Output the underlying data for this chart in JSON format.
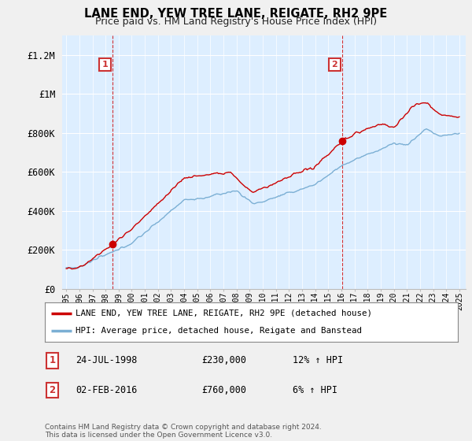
{
  "title": "LANE END, YEW TREE LANE, REIGATE, RH2 9PE",
  "subtitle": "Price paid vs. HM Land Registry's House Price Index (HPI)",
  "ylabel_ticks": [
    "£0",
    "£200K",
    "£400K",
    "£600K",
    "£800K",
    "£1M",
    "£1.2M"
  ],
  "ytick_values": [
    0,
    200000,
    400000,
    600000,
    800000,
    1000000,
    1200000
  ],
  "ylim": [
    0,
    1300000
  ],
  "xlim_start": 1994.7,
  "xlim_end": 2025.5,
  "sale1_x": 1998.56,
  "sale1_y": 230000,
  "sale1_label": "1",
  "sale2_x": 2016.09,
  "sale2_y": 760000,
  "sale2_label": "2",
  "vline1_x": 1998.56,
  "vline2_x": 2016.09,
  "legend_line1": "LANE END, YEW TREE LANE, REIGATE, RH2 9PE (detached house)",
  "legend_line2": "HPI: Average price, detached house, Reigate and Banstead",
  "annotation1_date": "24-JUL-1998",
  "annotation1_price": "£230,000",
  "annotation1_hpi": "12% ↑ HPI",
  "annotation2_date": "02-FEB-2016",
  "annotation2_price": "£760,000",
  "annotation2_hpi": "6% ↑ HPI",
  "footnote": "Contains HM Land Registry data © Crown copyright and database right 2024.\nThis data is licensed under the Open Government Licence v3.0.",
  "line_color_red": "#cc0000",
  "line_color_blue": "#7bafd4",
  "plot_bg_color": "#ddeeff",
  "background_color": "#f0f0f0",
  "grid_color": "#ffffff",
  "vline_color": "#cc0000",
  "marker_color": "#cc0000",
  "label_box_color": "#cc3333",
  "label_box_border": "#cc3333"
}
